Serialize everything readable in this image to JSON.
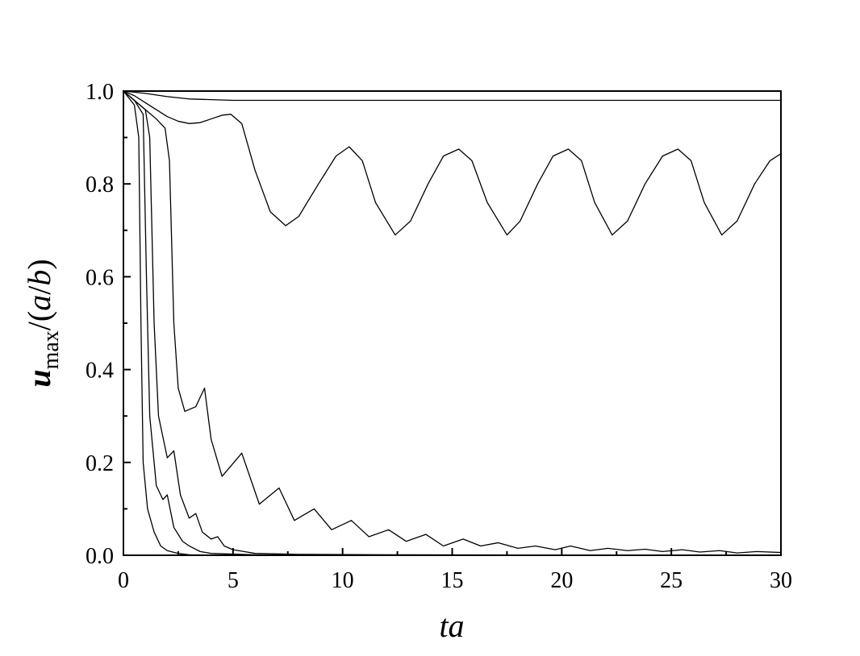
{
  "chart_data": {
    "type": "line",
    "xlabel": "ta",
    "ylabel": [
      {
        "text": "u",
        "italic": true
      },
      {
        "text": "max",
        "sub": true
      },
      {
        "text": "/(",
        "italic": false
      },
      {
        "text": "a",
        "italic": true
      },
      {
        "text": "/",
        "italic": false
      },
      {
        "text": "b",
        "italic": true
      },
      {
        "text": ")",
        "italic": false
      }
    ],
    "xlim": [
      0,
      30
    ],
    "ylim": [
      0,
      1
    ],
    "xticks": [
      0,
      5,
      10,
      15,
      20,
      25,
      30
    ],
    "xminorticks": [
      2.5,
      7.5,
      12.5,
      17.5,
      22.5,
      27.5
    ],
    "yticks": [
      {
        "value": 0,
        "label": "0.0"
      },
      {
        "value": 0.2,
        "label": "0.2"
      },
      {
        "value": 0.4,
        "label": "0.4"
      },
      {
        "value": 0.6,
        "label": "0.6"
      },
      {
        "value": 0.8,
        "label": "0.8"
      },
      {
        "value": 1,
        "label": "1.0"
      }
    ],
    "yminorticks": [
      0.1,
      0.3,
      0.5,
      0.7,
      0.9
    ],
    "grid": false,
    "series": [
      {
        "color": "#000000",
        "x": [
          0,
          1,
          2,
          3,
          5,
          10,
          30
        ],
        "values": [
          1,
          0.995,
          0.988,
          0.983,
          0.98,
          0.98,
          0.98
        ]
      },
      {
        "color": "#000000",
        "x": [
          0,
          0.5,
          1,
          1.5,
          2,
          2.5,
          3,
          3.5,
          4,
          4.5,
          4.9,
          5.4,
          6,
          6.7,
          7.4,
          8,
          8.9,
          9.7,
          10.3,
          10.9,
          11.5,
          12.4,
          13.1,
          13.9,
          14.6,
          15.3,
          15.9,
          16.6,
          17.5,
          18.1,
          18.9,
          19.6,
          20.3,
          20.9,
          21.5,
          22.3,
          23,
          23.8,
          24.6,
          25.3,
          25.9,
          26.5,
          27.3,
          28,
          28.8,
          29.5,
          30
        ],
        "values": [
          1,
          0.99,
          0.975,
          0.96,
          0.945,
          0.935,
          0.93,
          0.932,
          0.94,
          0.948,
          0.95,
          0.93,
          0.83,
          0.74,
          0.71,
          0.73,
          0.8,
          0.86,
          0.88,
          0.85,
          0.76,
          0.69,
          0.72,
          0.8,
          0.86,
          0.875,
          0.85,
          0.76,
          0.69,
          0.72,
          0.8,
          0.86,
          0.875,
          0.85,
          0.76,
          0.69,
          0.72,
          0.8,
          0.86,
          0.875,
          0.85,
          0.76,
          0.69,
          0.72,
          0.8,
          0.85,
          0.865
        ]
      },
      {
        "color": "#000000",
        "x": [
          0,
          0.5,
          1,
          1.5,
          1.9,
          2.1,
          2.3,
          2.5,
          2.8,
          3.3,
          3.7,
          4,
          4.5,
          5.4,
          6.2,
          7.1,
          7.8,
          8.7,
          9.5,
          10.4,
          11.2,
          12.1,
          12.9,
          13.8,
          14.6,
          15.5,
          16.3,
          17.1,
          18,
          18.8,
          19.7,
          20.4,
          21.3,
          22.1,
          23,
          23.8,
          24.6,
          25.5,
          26.3,
          27.2,
          28,
          28.9,
          30
        ],
        "values": [
          1,
          0.98,
          0.96,
          0.94,
          0.92,
          0.85,
          0.5,
          0.36,
          0.31,
          0.32,
          0.36,
          0.25,
          0.17,
          0.22,
          0.11,
          0.145,
          0.075,
          0.1,
          0.055,
          0.075,
          0.04,
          0.055,
          0.03,
          0.045,
          0.02,
          0.035,
          0.02,
          0.027,
          0.015,
          0.02,
          0.012,
          0.02,
          0.01,
          0.015,
          0.01,
          0.013,
          0.008,
          0.012,
          0.007,
          0.01,
          0.005,
          0.008,
          0.006
        ]
      },
      {
        "color": "#000000",
        "x": [
          0,
          0.5,
          1,
          1.2,
          1.4,
          1.6,
          2,
          2.3,
          2.6,
          3,
          3.3,
          3.6,
          4,
          4.3,
          4.6,
          5,
          5.5,
          6,
          8,
          12,
          30
        ],
        "values": [
          1,
          0.98,
          0.96,
          0.9,
          0.5,
          0.3,
          0.21,
          0.225,
          0.13,
          0.08,
          0.09,
          0.05,
          0.035,
          0.04,
          0.02,
          0.012,
          0.008,
          0.004,
          0.002,
          0.001,
          0
        ]
      },
      {
        "color": "#000000",
        "x": [
          0,
          0.5,
          0.9,
          1.05,
          1.2,
          1.5,
          1.8,
          2,
          2.3,
          2.7,
          3,
          3.5,
          4,
          6,
          30
        ],
        "values": [
          1,
          0.98,
          0.95,
          0.6,
          0.3,
          0.15,
          0.12,
          0.13,
          0.06,
          0.03,
          0.02,
          0.008,
          0.004,
          0.001,
          0
        ]
      },
      {
        "color": "#000000",
        "x": [
          0,
          0.5,
          0.7,
          0.8,
          0.9,
          1.1,
          1.4,
          1.7,
          2,
          2.5,
          3,
          5,
          30
        ],
        "values": [
          1,
          0.97,
          0.9,
          0.5,
          0.2,
          0.1,
          0.05,
          0.02,
          0.01,
          0.004,
          0.001,
          0,
          0
        ]
      }
    ]
  }
}
